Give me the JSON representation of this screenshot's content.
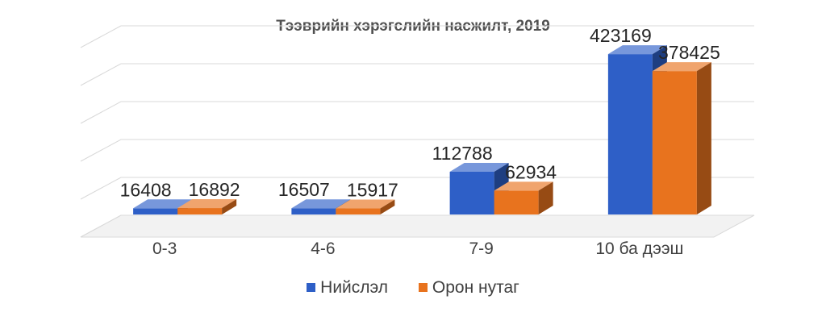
{
  "chart_data": {
    "type": "bar",
    "title": "Тээврийн хэрэгслийн насжилт, 2019",
    "categories": [
      "0-3",
      "4-6",
      "7-9",
      "10 ба дээш"
    ],
    "series": [
      {
        "name": "Нийслэл",
        "values": [
          16408,
          16507,
          112788,
          423169
        ],
        "color": "#2E5FC7"
      },
      {
        "name": "Орон нутаг",
        "values": [
          16892,
          15917,
          62934,
          378425
        ],
        "color": "#E8731E"
      }
    ],
    "ylim": [
      0,
      500000
    ],
    "grid": true,
    "legend_position": "bottom",
    "style": "3d-clustered-column"
  }
}
